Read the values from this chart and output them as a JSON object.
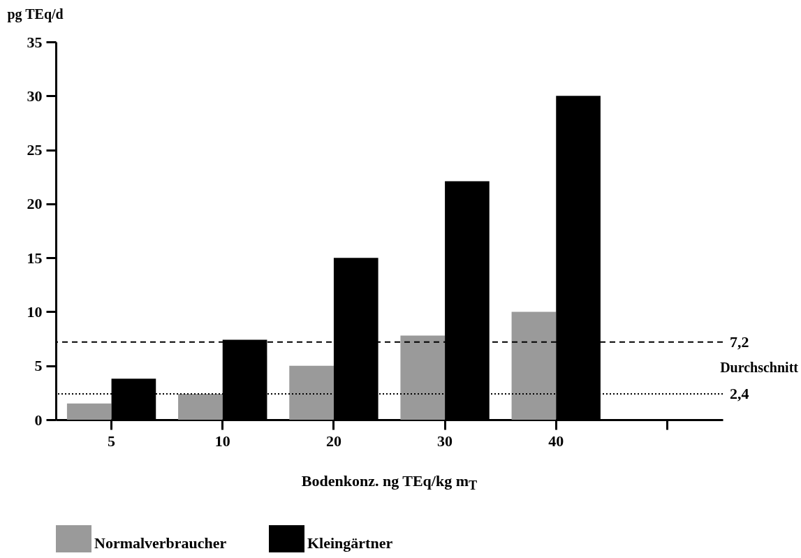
{
  "chart_data": {
    "type": "bar",
    "ylabel": "pg TEq/d",
    "xlabel": "Bodenkonz. ng TEq/kg m$_{T}$",
    "categories": [
      "5",
      "10",
      "20",
      "30",
      "40",
      null
    ],
    "series": [
      {
        "name": "Normalverbraucher",
        "color": "#9a9a9a",
        "values": [
          1.5,
          2.4,
          5.0,
          7.8,
          10.0,
          null
        ]
      },
      {
        "name": "Kleingärtner",
        "color": "#000000",
        "values": [
          3.8,
          7.4,
          15.0,
          22.1,
          30.0,
          null
        ]
      }
    ],
    "ylim": [
      0,
      35
    ],
    "yticks": [
      0,
      5,
      10,
      15,
      20,
      25,
      30,
      35
    ],
    "ref_lines": [
      {
        "axis": "y",
        "value": 7.2,
        "label": "7,2",
        "line_style": "dashed",
        "color": "#000000"
      },
      {
        "axis": "y",
        "value": 2.4,
        "label": "2,4",
        "line_style": "dotted",
        "color": "#000000"
      }
    ],
    "annotations": [
      "Durchschnitt"
    ],
    "legend": "bottom"
  }
}
